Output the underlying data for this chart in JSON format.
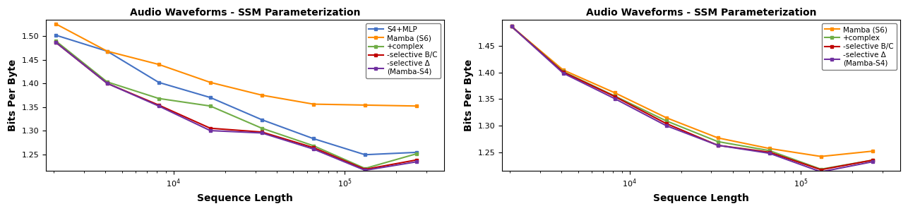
{
  "title": "Audio Waveforms - SSM Parameterization",
  "xlabel": "Sequence Length",
  "ylabel": "Bits Per Byte",
  "x_values": [
    2048,
    4096,
    8192,
    16384,
    32768,
    65536,
    131072,
    262144
  ],
  "left": {
    "S4+MLP": {
      "color": "#4472C4",
      "y": [
        1.502,
        1.468,
        1.402,
        1.37,
        1.323,
        1.283,
        1.249,
        1.254
      ]
    },
    "Mamba (S6)": {
      "color": "#FF8C00",
      "y": [
        1.526,
        1.468,
        1.44,
        1.402,
        1.375,
        1.356,
        1.354,
        1.352
      ]
    },
    "+complex": {
      "color": "#70AD47",
      "y": [
        1.49,
        1.403,
        1.368,
        1.352,
        1.305,
        1.268,
        1.22,
        1.251
      ]
    },
    "-selective B/C": {
      "color": "#C00000",
      "y": [
        1.487,
        1.4,
        1.354,
        1.305,
        1.297,
        1.264,
        1.218,
        1.238
      ]
    },
    "-selective Δ (Mamba-S4)": {
      "color": "#7030A0",
      "y": [
        1.487,
        1.4,
        1.352,
        1.3,
        1.295,
        1.261,
        1.216,
        1.234
      ]
    }
  },
  "right": {
    "Mamba (S6)": {
      "color": "#FF8C00",
      "y": [
        1.487,
        1.405,
        1.362,
        1.315,
        1.277,
        1.257,
        1.242,
        1.252
      ]
    },
    "+complex": {
      "color": "#70AD47",
      "y": [
        1.487,
        1.402,
        1.356,
        1.309,
        1.27,
        1.253,
        1.218,
        1.235
      ]
    },
    "-selective B/C": {
      "color": "#C00000",
      "y": [
        1.487,
        1.401,
        1.355,
        1.304,
        1.263,
        1.25,
        1.217,
        1.235
      ]
    },
    "-selective Δ (Mamba-S4)": {
      "color": "#7030A0",
      "y": [
        1.487,
        1.399,
        1.351,
        1.3,
        1.263,
        1.248,
        1.213,
        1.232
      ]
    }
  },
  "left_legend_labels": [
    "S4+MLP",
    "Mamba (S6)",
    "+complex",
    "-selective B/C",
    "-selective Δ\n(Mamba-S4)"
  ],
  "right_legend_labels": [
    "Mamba (S6)",
    "+complex",
    "-selective B/C",
    "-selective Δ\n(Mamba-S4)"
  ],
  "left_ylim": [
    1.215,
    1.535
  ],
  "right_ylim": [
    1.215,
    1.5
  ],
  "left_yticks": [
    1.25,
    1.3,
    1.35,
    1.4,
    1.45,
    1.5
  ],
  "right_yticks": [
    1.25,
    1.3,
    1.35,
    1.4,
    1.45
  ],
  "xlim": [
    1800,
    380000
  ]
}
